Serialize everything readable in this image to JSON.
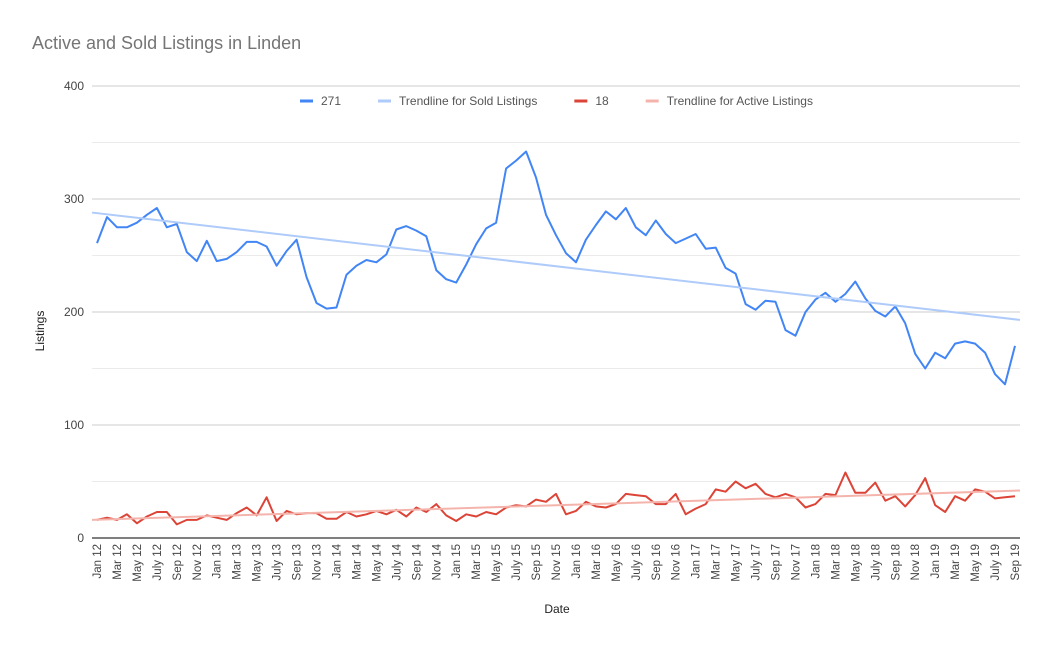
{
  "chart_data": {
    "type": "line",
    "title": "Active and Sold Listings in Linden",
    "xlabel": "Date",
    "ylabel": "Listings",
    "ylim": [
      0,
      400
    ],
    "yticks": [
      0,
      100,
      200,
      300,
      400
    ],
    "grid": true,
    "legend_position": "top",
    "x": [
      "Jan 12",
      "Feb 12",
      "Mar 12",
      "Apr 12",
      "May 12",
      "Jun 12",
      "July 12",
      "Aug 12",
      "Sep 12",
      "Oct 12",
      "Nov 12",
      "Dec 12",
      "Jan 13",
      "Feb 13",
      "Mar 13",
      "Apr 13",
      "May 13",
      "Jun 13",
      "July 13",
      "Aug 13",
      "Sep 13",
      "Oct 13",
      "Nov 13",
      "Dec 13",
      "Jan 14",
      "Feb 14",
      "Mar 14",
      "Apr 14",
      "May 14",
      "Jun 14",
      "July 14",
      "Aug 14",
      "Sep 14",
      "Oct 14",
      "Nov 14",
      "Dec 14",
      "Jan 15",
      "Feb 15",
      "Mar 15",
      "Apr 15",
      "May 15",
      "Jun 15",
      "July 15",
      "Aug 15",
      "Sep 15",
      "Oct 15",
      "Nov 15",
      "Dec 15",
      "Jan 16",
      "Feb 16",
      "Mar 16",
      "Apr 16",
      "May 16",
      "Jun 16",
      "July 16",
      "Aug 16",
      "Sep 16",
      "Oct 16",
      "Nov 16",
      "Dec 16",
      "Jan 17",
      "Feb 17",
      "Mar 17",
      "Apr 17",
      "May 17",
      "Jun 17",
      "July 17",
      "Aug 17",
      "Sep 17",
      "Oct 17",
      "Nov 17",
      "Dec 17",
      "Jan 18",
      "Feb 18",
      "Mar 18",
      "Apr 18",
      "May 18",
      "Jun 18",
      "July 18",
      "Aug 18",
      "Sep 18",
      "Oct 18",
      "Nov 18",
      "Dec 18",
      "Jan 19",
      "Feb 19",
      "Mar 19",
      "Apr 19",
      "May 19",
      "Jun 19",
      "July 19",
      "Aug 19",
      "Sep 19"
    ],
    "x_tick_labels": [
      "Jan 12",
      "Mar 12",
      "May 12",
      "July 12",
      "Sep 12",
      "Nov 12",
      "Jan 13",
      "Mar 13",
      "May 13",
      "July 13",
      "Sep 13",
      "Nov 13",
      "Jan 14",
      "Mar 14",
      "May 14",
      "July 14",
      "Sep 14",
      "Nov 14",
      "Jan 15",
      "Mar 15",
      "May 15",
      "July 15",
      "Sep 15",
      "Nov 15",
      "Jan 16",
      "Mar 16",
      "May 16",
      "July 16",
      "Sep 16",
      "Nov 16",
      "Jan 17",
      "Mar 17",
      "May 17",
      "July 17",
      "Sep 17",
      "Nov 17",
      "Jan 18",
      "Mar 18",
      "May 18",
      "July 18",
      "Sep 18",
      "Nov 18",
      "Jan 19",
      "Mar 19",
      "May 19",
      "July 19",
      "Sep 19"
    ],
    "series": [
      {
        "name": "271",
        "color": "#4285f4",
        "kind": "line",
        "values": [
          261,
          284,
          275,
          275,
          279,
          286,
          292,
          275,
          278,
          253,
          245,
          263,
          245,
          247,
          253,
          262,
          262,
          258,
          241,
          254,
          264,
          231,
          208,
          203,
          204,
          233,
          241,
          246,
          244,
          251,
          273,
          276,
          272,
          267,
          237,
          229,
          226,
          242,
          260,
          274,
          279,
          327,
          334,
          342,
          319,
          286,
          268,
          252,
          244,
          264,
          277,
          289,
          282,
          292,
          275,
          268,
          281,
          269,
          261,
          265,
          269,
          256,
          257,
          239,
          234,
          207,
          202,
          210,
          209,
          184,
          179,
          200,
          211,
          217,
          209,
          216,
          227,
          212,
          201,
          196,
          205,
          190,
          163,
          150,
          164,
          159,
          172,
          174,
          172,
          164,
          145,
          136,
          170
        ]
      },
      {
        "name": "Trendline for Sold Listings",
        "color": "#aecbfa",
        "kind": "trend",
        "start": 288,
        "end": 193
      },
      {
        "name": "18",
        "color": "#db4437",
        "kind": "line",
        "values": [
          16,
          18,
          16,
          21,
          13,
          19,
          23,
          23,
          12,
          16,
          16,
          20,
          18,
          16,
          22,
          27,
          20,
          36,
          15,
          24,
          21,
          22,
          22,
          17,
          17,
          23,
          19,
          21,
          24,
          21,
          25,
          19,
          27,
          23,
          30,
          20,
          15,
          21,
          19,
          23,
          21,
          27,
          29,
          28,
          34,
          32,
          39,
          21,
          24,
          32,
          28,
          27,
          30,
          39,
          38,
          37,
          30,
          30,
          39,
          21,
          26,
          30,
          43,
          41,
          50,
          44,
          48,
          39,
          36,
          39,
          36,
          27,
          30,
          39,
          38,
          58,
          40,
          40,
          49,
          33,
          37,
          28,
          38,
          53,
          29,
          23,
          37,
          33,
          43,
          41,
          35,
          36,
          37
        ]
      },
      {
        "name": "Trendline for Active Listings",
        "color": "#f4b4ac",
        "kind": "trend",
        "start": 16,
        "end": 42
      }
    ]
  }
}
